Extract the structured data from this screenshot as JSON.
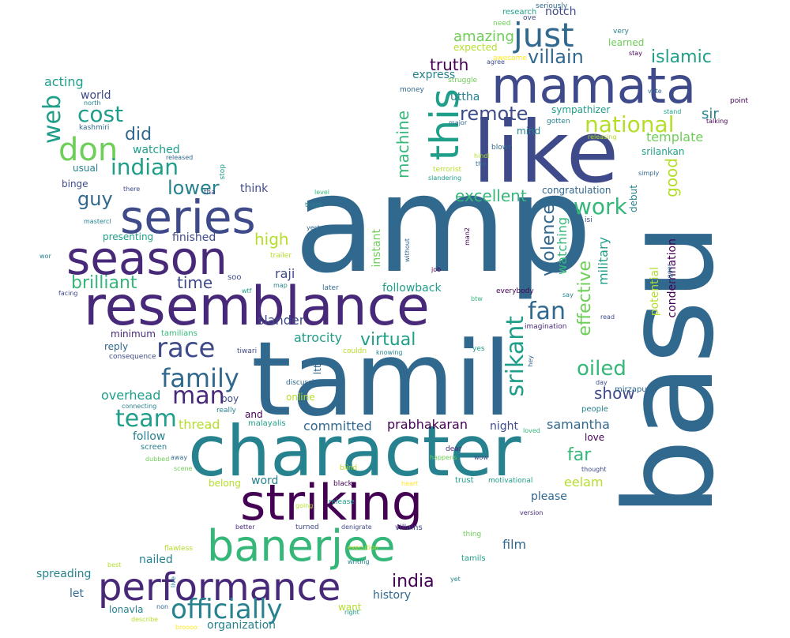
{
  "palette": [
    "#440154",
    "#482878",
    "#3e4a89",
    "#31688e",
    "#26828e",
    "#1f9e89",
    "#35b779",
    "#6ece58",
    "#b5de2b",
    "#fde725"
  ],
  "words": [
    {
      "text": "amp",
      "color": "#31688e"
    },
    {
      "text": "tamil",
      "color": "#31688e"
    },
    {
      "text": "character",
      "color": "#26828e"
    },
    {
      "text": "like",
      "color": "#3e4a89"
    },
    {
      "text": "mamata",
      "color": "#3e4a89"
    },
    {
      "text": "resemblance",
      "color": "#482878"
    },
    {
      "text": "striking",
      "color": "#440154"
    },
    {
      "text": "basu",
      "color": "#31688e"
    },
    {
      "text": "series",
      "color": "#3e4a89"
    },
    {
      "text": "season",
      "color": "#482878"
    },
    {
      "text": "banerjee",
      "color": "#35b779"
    },
    {
      "text": "performance",
      "color": "#482878"
    },
    {
      "text": "just",
      "color": "#31688e"
    },
    {
      "text": "this",
      "color": "#1f9e89"
    },
    {
      "text": "don",
      "color": "#6ece58"
    },
    {
      "text": "officially",
      "color": "#26828e"
    },
    {
      "text": "race",
      "color": "#3e4a89"
    },
    {
      "text": "family",
      "color": "#31688e"
    },
    {
      "text": "man",
      "color": "#482878"
    },
    {
      "text": "team",
      "color": "#1f9e89"
    },
    {
      "text": "fan",
      "color": "#31688e"
    },
    {
      "text": "srikant",
      "color": "#1f9e89"
    },
    {
      "text": "national",
      "color": "#b5de2b"
    },
    {
      "text": "indian",
      "color": "#1f9e89"
    },
    {
      "text": "cost",
      "color": "#1f9e89"
    },
    {
      "text": "villain",
      "color": "#31688e"
    },
    {
      "text": "islamic",
      "color": "#1f9e89"
    },
    {
      "text": "remote",
      "color": "#3e4a89"
    },
    {
      "text": "truth",
      "color": "#440154"
    },
    {
      "text": "web",
      "color": "#1f9e89"
    },
    {
      "text": "work",
      "color": "#35b779"
    },
    {
      "text": "violence",
      "color": "#31688e"
    },
    {
      "text": "effective",
      "color": "#6ece58"
    },
    {
      "text": "oiled",
      "color": "#35b779"
    },
    {
      "text": "good",
      "color": "#b5de2b"
    },
    {
      "text": "guy",
      "color": "#31688e"
    },
    {
      "text": "lower",
      "color": "#26828e"
    },
    {
      "text": "did",
      "color": "#31688e"
    },
    {
      "text": "high",
      "color": "#b5de2b"
    },
    {
      "text": "machine",
      "color": "#35b779"
    },
    {
      "text": "excellent",
      "color": "#35b779"
    },
    {
      "text": "brilliant",
      "color": "#35b779"
    },
    {
      "text": "time",
      "color": "#3e4a89"
    },
    {
      "text": "virtual",
      "color": "#1f9e89"
    },
    {
      "text": "india",
      "color": "#440154"
    },
    {
      "text": "show",
      "color": "#3e4a89"
    },
    {
      "text": "far",
      "color": "#35b779"
    },
    {
      "text": "amazing",
      "color": "#6ece58"
    },
    {
      "text": "template",
      "color": "#6ece58"
    },
    {
      "text": "sir",
      "color": "#26828e"
    },
    {
      "text": "acting",
      "color": "#1f9e89"
    },
    {
      "text": "express",
      "color": "#26828e"
    },
    {
      "text": "uttha",
      "color": "#26828e"
    },
    {
      "text": "watching",
      "color": "#35b779"
    },
    {
      "text": "military",
      "color": "#1f9e89"
    },
    {
      "text": "atrocity",
      "color": "#1f9e89"
    },
    {
      "text": "slander",
      "color": "#3e4a89"
    },
    {
      "text": "raji",
      "color": "#3e4a89"
    },
    {
      "text": "overhead",
      "color": "#1f9e89"
    },
    {
      "text": "committed",
      "color": "#31688e"
    },
    {
      "text": "prabhakaran",
      "color": "#440154"
    },
    {
      "text": "samantha",
      "color": "#31688e"
    },
    {
      "text": "thread",
      "color": "#b5de2b"
    },
    {
      "text": "followback",
      "color": "#1f9e89"
    },
    {
      "text": "film",
      "color": "#31688e"
    },
    {
      "text": "nailed",
      "color": "#26828e"
    },
    {
      "text": "spreading",
      "color": "#26828e"
    },
    {
      "text": "lonavla",
      "color": "#26828e"
    },
    {
      "text": "organization",
      "color": "#26828e"
    },
    {
      "text": "history",
      "color": "#31688e"
    },
    {
      "text": "let",
      "color": "#31688e"
    },
    {
      "text": "eelam",
      "color": "#b5de2b"
    },
    {
      "text": "please",
      "color": "#31688e"
    },
    {
      "text": "night",
      "color": "#3e4a89"
    },
    {
      "text": "love",
      "color": "#440154"
    },
    {
      "text": "follow",
      "color": "#26828e"
    },
    {
      "text": "minimum",
      "color": "#482878"
    },
    {
      "text": "reply",
      "color": "#31688e"
    },
    {
      "text": "finished",
      "color": "#3e4a89"
    },
    {
      "text": "condemnation",
      "color": "#440154"
    },
    {
      "text": "debut",
      "color": "#26828e"
    },
    {
      "text": "instant",
      "color": "#6ece58"
    },
    {
      "text": "potential",
      "color": "#b5de2b"
    },
    {
      "text": "word",
      "color": "#26828e"
    },
    {
      "text": "srilankan",
      "color": "#1f9e89"
    },
    {
      "text": "world",
      "color": "#3e4a89"
    },
    {
      "text": "watched",
      "color": "#1f9e89"
    },
    {
      "text": "usual",
      "color": "#26828e"
    },
    {
      "text": "binge",
      "color": "#3e4a89"
    },
    {
      "text": "mind",
      "color": "#26828e"
    },
    {
      "text": "think",
      "color": "#3e4a89"
    },
    {
      "text": "sympathizer",
      "color": "#1f9e89"
    },
    {
      "text": "congratulation",
      "color": "#31688e"
    },
    {
      "text": "notch",
      "color": "#3e4a89"
    },
    {
      "text": "learned",
      "color": "#6ece58"
    },
    {
      "text": "expected",
      "color": "#b5de2b"
    },
    {
      "text": "research",
      "color": "#1f9e89"
    },
    {
      "text": "seriously",
      "color": "#31688e"
    },
    {
      "text": "very",
      "color": "#26828e"
    },
    {
      "text": "stay",
      "color": "#440154"
    },
    {
      "text": "need",
      "color": "#6ece58"
    },
    {
      "text": "ove",
      "color": "#3e4a89"
    },
    {
      "text": "awesome",
      "color": "#fde725"
    },
    {
      "text": "agree",
      "color": "#3e4a89"
    },
    {
      "text": "struggle",
      "color": "#6ece58"
    },
    {
      "text": "money",
      "color": "#31688e"
    },
    {
      "text": "major",
      "color": "#31688e"
    },
    {
      "text": "gotten",
      "color": "#26828e"
    },
    {
      "text": "vote",
      "color": "#31688e"
    },
    {
      "text": "point",
      "color": "#440154"
    },
    {
      "text": "stand",
      "color": "#1f9e89"
    },
    {
      "text": "talking",
      "color": "#440154"
    },
    {
      "text": "releasing",
      "color": "#b5de2b"
    },
    {
      "text": "hindi",
      "color": "#b5de2b"
    },
    {
      "text": "blown",
      "color": "#31688e"
    },
    {
      "text": "the",
      "color": "#31688e"
    },
    {
      "text": "terrorist",
      "color": "#b5de2b"
    },
    {
      "text": "slandering",
      "color": "#1f9e89"
    },
    {
      "text": "simply",
      "color": "#31688e"
    },
    {
      "text": "isi",
      "color": "#3e4a89"
    },
    {
      "text": "north",
      "color": "#26828e"
    },
    {
      "text": "kashmiri",
      "color": "#31688e"
    },
    {
      "text": "released",
      "color": "#31688e"
    },
    {
      "text": "there",
      "color": "#3e4a89"
    },
    {
      "text": "tha",
      "color": "#3e4a89"
    },
    {
      "text": "stop",
      "color": "#1f9e89"
    },
    {
      "text": "level",
      "color": "#35b779"
    },
    {
      "text": "thank",
      "color": "#26828e"
    },
    {
      "text": "mastercl",
      "color": "#26828e"
    },
    {
      "text": "yesterday",
      "color": "#31688e"
    },
    {
      "text": "presenting",
      "color": "#1f9e89"
    },
    {
      "text": "trailer",
      "color": "#b5de2b"
    },
    {
      "text": "wor",
      "color": "#26828e"
    },
    {
      "text": "without",
      "color": "#31688e"
    },
    {
      "text": "man2",
      "color": "#440154"
    },
    {
      "text": "job",
      "color": "#440154"
    },
    {
      "text": "soo",
      "color": "#3e4a89"
    },
    {
      "text": "wtf",
      "color": "#1f9e89"
    },
    {
      "text": "map",
      "color": "#26828e"
    },
    {
      "text": "later",
      "color": "#31688e"
    },
    {
      "text": "everybody",
      "color": "#440154"
    },
    {
      "text": "say",
      "color": "#26828e"
    },
    {
      "text": "bigger",
      "color": "#31688e"
    },
    {
      "text": "facing",
      "color": "#3e4a89"
    },
    {
      "text": "btw",
      "color": "#35b779"
    },
    {
      "text": "read",
      "color": "#3e4a89"
    },
    {
      "text": "imagination",
      "color": "#482878"
    },
    {
      "text": "tamilians",
      "color": "#35b779"
    },
    {
      "text": "tiwari",
      "color": "#3e4a89"
    },
    {
      "text": "couldn",
      "color": "#b5de2b"
    },
    {
      "text": "knowing",
      "color": "#26828e"
    },
    {
      "text": "yes",
      "color": "#1f9e89"
    },
    {
      "text": "hey",
      "color": "#31688e"
    },
    {
      "text": "consequence",
      "color": "#3e4a89"
    },
    {
      "text": "ltte",
      "color": "#31688e"
    },
    {
      "text": "discussion",
      "color": "#31688e"
    },
    {
      "text": "day",
      "color": "#3e4a89"
    },
    {
      "text": "mirzapur",
      "color": "#31688e"
    },
    {
      "text": "connecting",
      "color": "#26828e"
    },
    {
      "text": "boy",
      "color": "#3e4a89"
    },
    {
      "text": "online",
      "color": "#b5de2b"
    },
    {
      "text": "really",
      "color": "#26828e"
    },
    {
      "text": "people",
      "color": "#26828e"
    },
    {
      "text": "and",
      "color": "#440154"
    },
    {
      "text": "malayalis",
      "color": "#1f9e89"
    },
    {
      "text": "loved",
      "color": "#35b779"
    },
    {
      "text": "screen",
      "color": "#26828e"
    },
    {
      "text": "dubbed",
      "color": "#6ece58"
    },
    {
      "text": "away",
      "color": "#31688e"
    },
    {
      "text": "scene",
      "color": "#6ece58"
    },
    {
      "text": "dear",
      "color": "#482878"
    },
    {
      "text": "happens",
      "color": "#6ece58"
    },
    {
      "text": "wow",
      "color": "#3e4a89"
    },
    {
      "text": "thought",
      "color": "#3e4a89"
    },
    {
      "text": "blind",
      "color": "#b5de2b"
    },
    {
      "text": "belong",
      "color": "#b5de2b"
    },
    {
      "text": "black",
      "color": "#440154"
    },
    {
      "text": "heart",
      "color": "#fde725"
    },
    {
      "text": "trust",
      "color": "#1f9e89"
    },
    {
      "text": "motivational",
      "color": "#1f9e89"
    },
    {
      "text": "going",
      "color": "#b5de2b"
    },
    {
      "text": "release",
      "color": "#1f9e89"
    },
    {
      "text": "version",
      "color": "#482878"
    },
    {
      "text": "better",
      "color": "#482878"
    },
    {
      "text": "turned",
      "color": "#3e4a89"
    },
    {
      "text": "denigrate",
      "color": "#3e4a89"
    },
    {
      "text": "villains",
      "color": "#3e4a89"
    },
    {
      "text": "thing",
      "color": "#6ece58"
    },
    {
      "text": "flawless",
      "color": "#b5de2b"
    },
    {
      "text": "execution",
      "color": "#b5de2b"
    },
    {
      "text": "tamils",
      "color": "#1f9e89"
    },
    {
      "text": "writing",
      "color": "#26828e"
    },
    {
      "text": "best",
      "color": "#b5de2b"
    },
    {
      "text": "live",
      "color": "#26828e"
    },
    {
      "text": "non",
      "color": "#31688e"
    },
    {
      "text": "yet",
      "color": "#26828e"
    },
    {
      "text": "want",
      "color": "#b5de2b"
    },
    {
      "text": "right",
      "color": "#1f9e89"
    },
    {
      "text": "describe",
      "color": "#b5de2b"
    },
    {
      "text": "broooo",
      "color": "#fde725"
    }
  ]
}
